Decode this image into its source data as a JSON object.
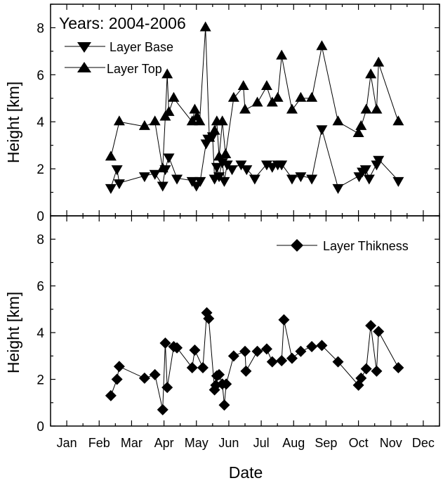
{
  "chart_data": [
    {
      "type": "line",
      "panel": "top",
      "annotation": "Years: 2004-2006",
      "xlabel": "",
      "ylabel": "Height [km]",
      "xlim": [
        0,
        12
      ],
      "ylim": [
        0,
        9
      ],
      "yticks": [
        0,
        2,
        4,
        6,
        8
      ],
      "xticks": [
        "Jan",
        "Feb",
        "Mar",
        "Apr",
        "May",
        "Jun",
        "Jul",
        "Aug",
        "Sep",
        "Oct",
        "Nov",
        "Dec"
      ],
      "legend_position": "top-left",
      "series": [
        {
          "name": "Layer Base",
          "marker": "triangle-down",
          "points": [
            [
              1.86,
              1.2
            ],
            [
              2.05,
              2.0
            ],
            [
              2.12,
              1.4
            ],
            [
              2.9,
              1.7
            ],
            [
              3.22,
              1.8
            ],
            [
              3.46,
              1.3
            ],
            [
              3.54,
              2.0
            ],
            [
              3.65,
              2.5
            ],
            [
              3.9,
              1.6
            ],
            [
              4.37,
              1.5
            ],
            [
              4.5,
              1.3
            ],
            [
              4.62,
              1.5
            ],
            [
              4.8,
              3.1
            ],
            [
              4.86,
              3.3
            ],
            [
              5.0,
              3.4
            ],
            [
              5.06,
              1.6
            ],
            [
              5.13,
              2.1
            ],
            [
              5.2,
              1.7
            ],
            [
              5.3,
              2.3
            ],
            [
              5.36,
              1.5
            ],
            [
              5.45,
              2.2
            ],
            [
              5.6,
              2.0
            ],
            [
              5.88,
              2.2
            ],
            [
              6.05,
              2.0
            ],
            [
              6.3,
              1.6
            ],
            [
              6.67,
              2.2
            ],
            [
              6.84,
              2.1
            ],
            [
              7.01,
              2.2
            ],
            [
              7.13,
              2.2
            ],
            [
              7.45,
              1.6
            ],
            [
              7.72,
              1.7
            ],
            [
              8.06,
              1.6
            ],
            [
              8.37,
              3.7
            ],
            [
              8.87,
              1.2
            ],
            [
              9.52,
              1.7
            ],
            [
              9.62,
              1.9
            ],
            [
              9.72,
              2.0
            ],
            [
              9.83,
              1.6
            ],
            [
              10.06,
              2.2
            ],
            [
              10.12,
              2.4
            ],
            [
              10.73,
              1.5
            ]
          ]
        },
        {
          "name": "Layer Top",
          "marker": "triangle-up",
          "points": [
            [
              1.86,
              2.5
            ],
            [
              2.12,
              4.0
            ],
            [
              2.9,
              3.8
            ],
            [
              3.22,
              4.0
            ],
            [
              3.46,
              2.0
            ],
            [
              3.54,
              4.2
            ],
            [
              3.6,
              6.0
            ],
            [
              3.65,
              4.4
            ],
            [
              3.8,
              5.0
            ],
            [
              4.37,
              4.0
            ],
            [
              4.45,
              4.5
            ],
            [
              4.52,
              4.2
            ],
            [
              4.6,
              4.0
            ],
            [
              4.78,
              8.0
            ],
            [
              4.9,
              3.3
            ],
            [
              5.06,
              3.6
            ],
            [
              5.13,
              4.0
            ],
            [
              5.2,
              2.5
            ],
            [
              5.3,
              4.0
            ],
            [
              5.4,
              2.6
            ],
            [
              5.65,
              5.0
            ],
            [
              5.95,
              5.5
            ],
            [
              6.0,
              4.5
            ],
            [
              6.38,
              4.8
            ],
            [
              6.67,
              5.5
            ],
            [
              6.84,
              4.8
            ],
            [
              7.01,
              5.0
            ],
            [
              7.13,
              6.8
            ],
            [
              7.45,
              4.5
            ],
            [
              7.72,
              5.0
            ],
            [
              8.06,
              5.0
            ],
            [
              8.37,
              7.2
            ],
            [
              8.87,
              4.0
            ],
            [
              9.5,
              3.5
            ],
            [
              9.58,
              3.8
            ],
            [
              9.74,
              4.5
            ],
            [
              9.88,
              6.0
            ],
            [
              10.06,
              4.5
            ],
            [
              10.12,
              6.5
            ],
            [
              10.73,
              4.0
            ]
          ]
        }
      ]
    },
    {
      "type": "line",
      "panel": "bottom",
      "xlabel": "Date",
      "ylabel": "Height [km]",
      "xlim": [
        0,
        12
      ],
      "ylim": [
        0,
        9
      ],
      "yticks": [
        0,
        2,
        4,
        6,
        8
      ],
      "xticks": [
        "Jan",
        "Feb",
        "Mar",
        "Apr",
        "May",
        "Jun",
        "Jul",
        "Aug",
        "Sep",
        "Oct",
        "Nov",
        "Dec"
      ],
      "legend_position": "top-right",
      "series": [
        {
          "name": "Layer Thikness",
          "marker": "diamond",
          "points": [
            [
              1.86,
              1.3
            ],
            [
              2.05,
              2.0
            ],
            [
              2.12,
              2.55
            ],
            [
              2.9,
              2.05
            ],
            [
              3.22,
              2.2
            ],
            [
              3.46,
              0.7
            ],
            [
              3.54,
              3.55
            ],
            [
              3.6,
              1.65
            ],
            [
              3.8,
              3.4
            ],
            [
              3.9,
              3.35
            ],
            [
              4.37,
              2.5
            ],
            [
              4.45,
              3.25
            ],
            [
              4.7,
              2.5
            ],
            [
              4.82,
              4.85
            ],
            [
              4.88,
              4.6
            ],
            [
              5.06,
              1.55
            ],
            [
              5.1,
              1.75
            ],
            [
              5.13,
              2.15
            ],
            [
              5.2,
              2.2
            ],
            [
              5.3,
              1.8
            ],
            [
              5.36,
              0.9
            ],
            [
              5.42,
              1.8
            ],
            [
              5.65,
              3.0
            ],
            [
              6.0,
              3.2
            ],
            [
              6.03,
              2.35
            ],
            [
              6.38,
              3.2
            ],
            [
              6.67,
              3.3
            ],
            [
              6.84,
              2.75
            ],
            [
              7.13,
              2.8
            ],
            [
              7.2,
              4.55
            ],
            [
              7.45,
              2.9
            ],
            [
              7.72,
              3.2
            ],
            [
              8.06,
              3.4
            ],
            [
              8.37,
              3.45
            ],
            [
              8.87,
              2.75
            ],
            [
              9.5,
              1.75
            ],
            [
              9.58,
              2.05
            ],
            [
              9.74,
              2.45
            ],
            [
              9.88,
              4.3
            ],
            [
              10.06,
              2.35
            ],
            [
              10.12,
              4.05
            ],
            [
              10.73,
              2.5
            ]
          ]
        }
      ]
    }
  ]
}
